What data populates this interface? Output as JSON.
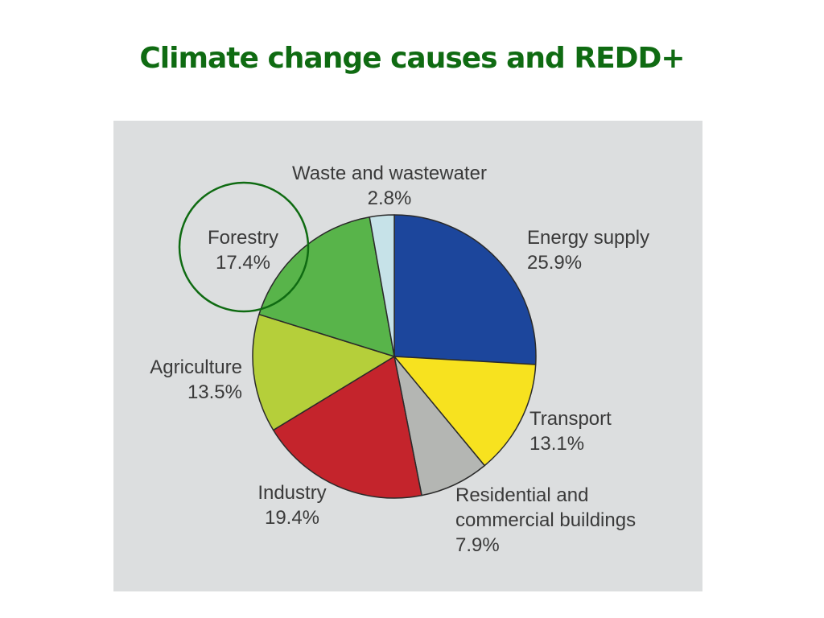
{
  "slide": {
    "title": "Climate change causes and REDD+",
    "title_color": "#0f6b12",
    "panel_background": "#dcdedf"
  },
  "chart_data": {
    "type": "pie",
    "title": "Climate change causes and REDD+",
    "start_angle": "12 o'clock",
    "direction": "clockwise",
    "unit": "%",
    "slices": [
      {
        "label": "Energy supply",
        "value": 25.9,
        "display": "25.9%",
        "color": "#1c469c"
      },
      {
        "label": "Transport",
        "value": 13.1,
        "display": "13.1%",
        "color": "#f7e21f"
      },
      {
        "label": "Residential and commercial buildings",
        "value": 7.9,
        "display": "7.9%",
        "color": "#b4b6b3"
      },
      {
        "label": "Industry",
        "value": 19.4,
        "display": "19.4%",
        "color": "#c4242c"
      },
      {
        "label": "Agriculture",
        "value": 13.5,
        "display": "13.5%",
        "color": "#b5cf3a"
      },
      {
        "label": "Forestry",
        "value": 17.4,
        "display": "17.4%",
        "color": "#58b44a"
      },
      {
        "label": "Waste and wastewater",
        "value": 2.8,
        "display": "2.8%",
        "color": "#c6e2e8"
      }
    ],
    "annotations": [
      {
        "type": "circle-highlight",
        "target": "Forestry",
        "color": "#0f6b12"
      }
    ]
  },
  "labels": {
    "waste": {
      "line1": "Waste and wastewater",
      "line2": "2.8%"
    },
    "forestry": {
      "line1": "Forestry",
      "line2": "17.4%"
    },
    "energy": {
      "line1": "Energy supply",
      "line2": "25.9%"
    },
    "agriculture": {
      "line1": "Agriculture",
      "line2": "13.5%"
    },
    "transport": {
      "line1": "Transport",
      "line2": "13.1%"
    },
    "industry": {
      "line1": "Industry",
      "line2": "19.4%"
    },
    "residential": {
      "line1": "Residential and",
      "line2": "commercial buildings",
      "line3": "7.9%"
    }
  }
}
